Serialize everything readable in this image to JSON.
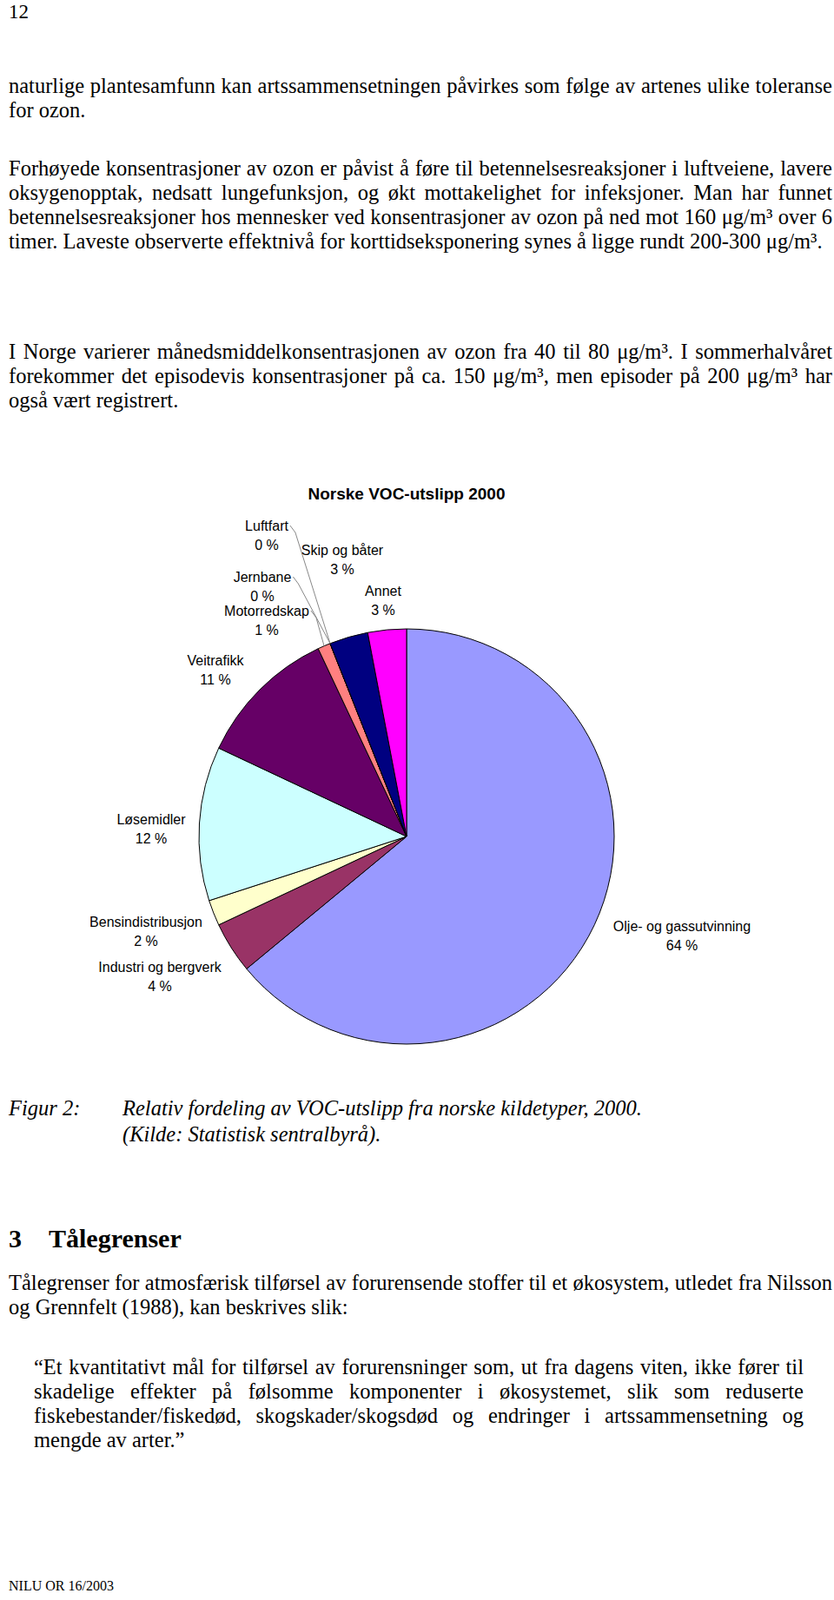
{
  "page_number": "12",
  "paragraphs": [
    "naturlige plantesamfunn kan artssammensetningen påvirkes som følge av artenes ulike toleranse for ozon.",
    "Forhøyede konsentrasjoner av ozon er påvist å føre til betennelsesreaksjoner i luftveiene, lavere oksygenopptak, nedsatt lungefunksjon, og økt mottakelighet for infeksjoner. Man har funnet betennelsesreaksjoner hos mennesker ved konsentrasjoner av ozon på ned mot 160 μg/m³ over 6 timer. Laveste observerte effektnivå for korttidseksponering synes å ligge rundt 200-300 μg/m³.",
    "I Norge varierer månedsmiddelkonsentrasjonen av ozon fra 40 til 80 μg/m³. I sommerhalvåret forekommer det episodevis konsentrasjoner på ca. 150 μg/m³, men episoder på 200 μg/m³ har også vært registrert."
  ],
  "chart_data": {
    "type": "pie",
    "title": "Norske VOC-utslipp 2000",
    "categories": [
      "Olje- og gassutvinning",
      "Industri og bergverk",
      "Bensindistribusjon",
      "Løsemidler",
      "Veitrafikk",
      "Motorredskap",
      "Jernbane",
      "Luftfart",
      "Skip og båter",
      "Annet"
    ],
    "values": [
      64,
      4,
      2,
      12,
      11,
      1,
      0,
      0,
      3,
      3
    ],
    "value_labels": [
      "64 %",
      "4 %",
      "2 %",
      "12 %",
      "11 %",
      "1 %",
      "0 %",
      "0 %",
      "3 %",
      "3 %"
    ],
    "colors": [
      "#9999ff",
      "#993366",
      "#ffffcc",
      "#ccffff",
      "#660066",
      "#ff8080",
      "#0066cc",
      "#ccccff",
      "#000080",
      "#ff00ff"
    ],
    "data_labels": true
  },
  "caption": {
    "label": "Figur 2:",
    "lines": [
      "Relativ fordeling av VOC-utslipp fra norske kildetyper, 2000.",
      "(Kilde: Statistisk sentralbyrå)."
    ]
  },
  "section": {
    "number": "3",
    "title": "Tålegrenser"
  },
  "section_paragraph": "Tålegrenser for atmosfærisk tilførsel av forurensende stoffer til et økosystem, utledet fra Nilsson og Grennfelt (1988), kan beskrives slik:",
  "quote": "“Et kvantitativt mål for tilførsel av forurensninger som, ut fra dagens viten, ikke fører til skadelige effekter på følsomme komponenter i økosystemet, slik som reduserte fiskebestander/fiskedød, skogskader/skogsdød og endringer i artssammensetning og mengde av arter.”",
  "footer": "NILU OR 16/2003"
}
